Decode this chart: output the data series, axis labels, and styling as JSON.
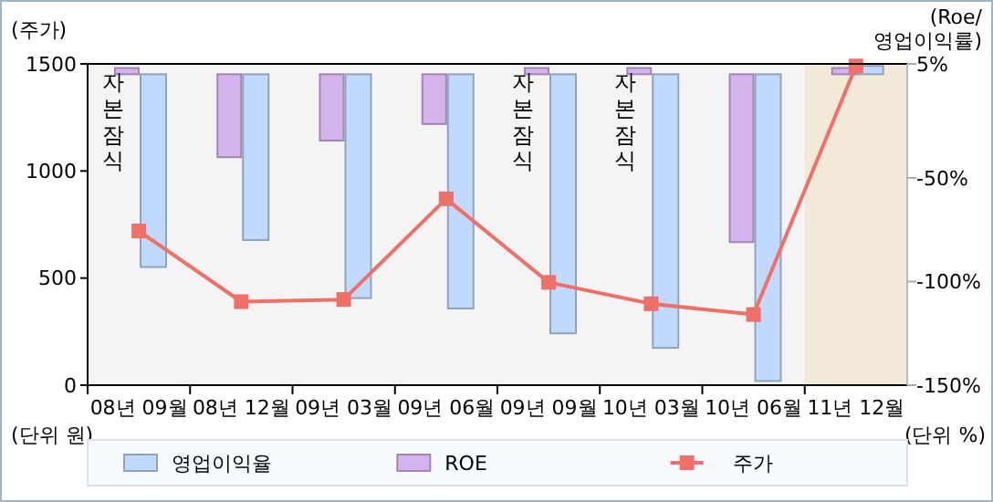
{
  "chart_data": {
    "type": "bar",
    "ylabel": "(주가)",
    "y2label": "(Roe/\n영업이익률)",
    "categories": [
      "08년 09월",
      "08년 12월",
      "09년 03월",
      "09년 06월",
      "09년 09월",
      "10년 03월",
      "10년 06월",
      "11년 12월"
    ],
    "series": [
      {
        "name": "ROE",
        "axis": "y2",
        "color": "#d5b4ee",
        "values": [
          3,
          -40,
          -32,
          -24,
          3,
          3,
          -81,
          3
        ]
      },
      {
        "name": "영업이익율",
        "axis": "y2",
        "color": "#c0d9fc",
        "values": [
          -93,
          -80,
          -108,
          -113,
          -125,
          -132,
          -148,
          4
        ]
      },
      {
        "name": "주가",
        "type": "line",
        "axis": "y",
        "color": "#ee7068",
        "marker": "square",
        "values": [
          720,
          390,
          400,
          870,
          480,
          380,
          330,
          1490
        ]
      }
    ],
    "ylim": [
      0,
      1500
    ],
    "yticks": [
      0,
      500,
      1000,
      1500
    ],
    "y2lim": [
      -150,
      5
    ],
    "y2ticks": [
      {
        "value": 5,
        "label": "5%"
      },
      {
        "value": -50,
        "label": "-50%"
      },
      {
        "value": -100,
        "label": "-100%"
      },
      {
        "value": -150,
        "label": "-150%"
      }
    ],
    "bands": [
      {
        "axis": "x",
        "from": "11년 12월",
        "to": "11년 12월",
        "color": "#f3e9d9"
      }
    ],
    "annotations": [
      {
        "text": "자본잠식",
        "x": "08년 09월"
      },
      {
        "text": "자본잠식",
        "x": "09년 09월"
      },
      {
        "text": "자본잠식",
        "x": "10년 03월"
      },
      "(단위 원)",
      "(단위 %)"
    ],
    "legend": "bottom",
    "grid": false
  }
}
